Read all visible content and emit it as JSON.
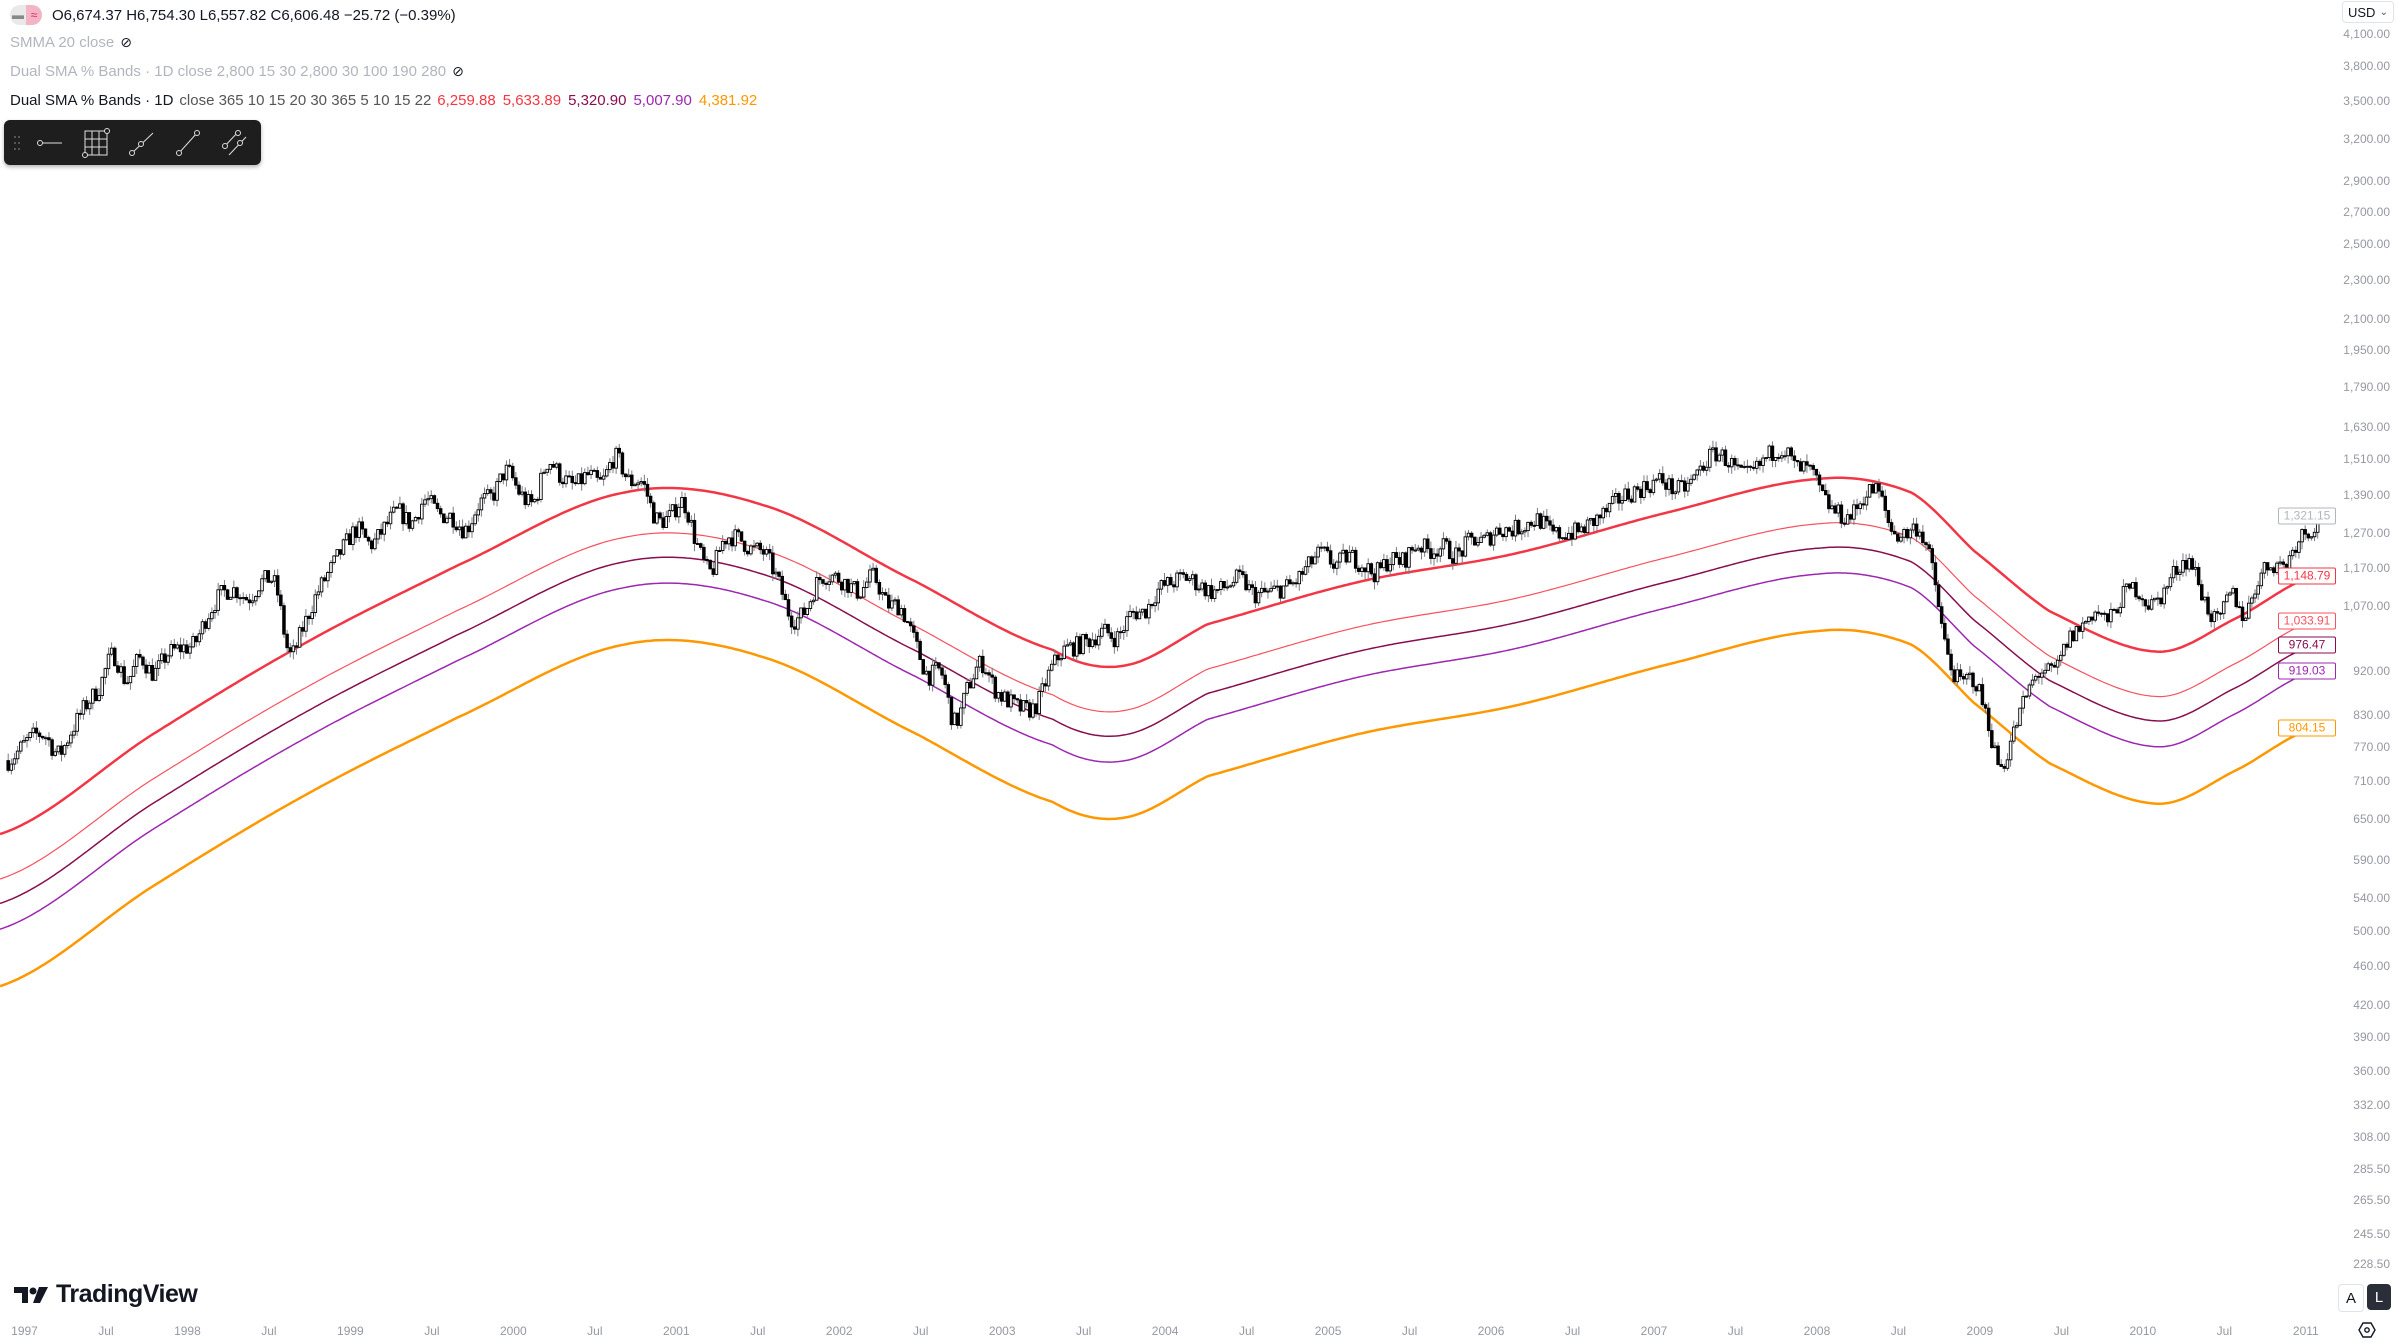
{
  "legend": {
    "ohlc": "O6,674.37 H6,754.30 L6,557.82 C6,606.48 −25.72 (−0.39%)",
    "smma": "SMMA 20 close",
    "hidden_bands": "Dual SMA % Bands · 1D close 2,800 15 30 2,800 30 100 190 280",
    "bands_title": "Dual SMA % Bands · 1D",
    "bands_params": "close 365 10 15 20 30 365 5 10 15 22",
    "band_values": [
      {
        "text": "6,259.88",
        "color": "#f23645"
      },
      {
        "text": "5,633.89",
        "color": "#f23645"
      },
      {
        "text": "5,320.90",
        "color": "#880e4f"
      },
      {
        "text": "5,007.90",
        "color": "#9c27b0"
      },
      {
        "text": "4,381.92",
        "color": "#ff9800"
      }
    ]
  },
  "toolbar": {
    "icons": [
      "drag-handle-icon",
      "horizontal-ray-icon",
      "fib-grid-icon",
      "trend-line-icon",
      "line-icon",
      "parallel-channel-icon"
    ]
  },
  "currency": "USD",
  "scale_buttons": {
    "auto": "A",
    "log": "L"
  },
  "logo": "TradingView",
  "price_axis": [
    "4,100.00",
    "3,800.00",
    "3,500.00",
    "3,200.00",
    "2,900.00",
    "2,700.00",
    "2,500.00",
    "2,300.00",
    "2,100.00",
    "1,950.00",
    "1,790.00",
    "1,630.00",
    "1,510.00",
    "1,390.00",
    "1,270.00",
    "1,170.00",
    "1,070.00",
    "920.00",
    "830.00",
    "770.00",
    "710.00",
    "650.00",
    "590.00",
    "540.00",
    "500.00",
    "460.00",
    "420.00",
    "390.00",
    "360.00",
    "332.00",
    "308.00",
    "285.50",
    "265.50",
    "245.50",
    "228.50"
  ],
  "time_axis": [
    "1997",
    "Jul",
    "1998",
    "Jul",
    "1999",
    "Jul",
    "2000",
    "Jul",
    "2001",
    "Jul",
    "2002",
    "Jul",
    "2003",
    "Jul",
    "2004",
    "Jul",
    "2005",
    "Jul",
    "2006",
    "Jul",
    "2007",
    "Jul",
    "2008",
    "Jul",
    "2009",
    "Jul",
    "2010",
    "Jul",
    "2011"
  ],
  "price_tags": [
    {
      "text": "1,321.15",
      "color": "#b2b5be",
      "value": 1321.15
    },
    {
      "text": "1,148.79",
      "color": "#f23645",
      "value": 1148.79
    },
    {
      "text": "1,033.91",
      "color": "#f7525f",
      "value": 1033.91
    },
    {
      "text": "976.47",
      "color": "#880e4f",
      "value": 976.47
    },
    {
      "text": "919.03",
      "color": "#9c27b0",
      "value": 919.03
    },
    {
      "text": "804.15",
      "color": "#ff9800",
      "value": 804.15
    }
  ],
  "chart_data": {
    "type": "candlestick",
    "scale": "log",
    "x_range": [
      "1997",
      "2011"
    ],
    "monthly_close_approx": {
      "1997": [
        786,
        790,
        757,
        801,
        848,
        885,
        954,
        899,
        947,
        915,
        955,
        970
      ],
      "1998": [
        980,
        1049,
        1101,
        1112,
        1091,
        1134,
        1121,
        957,
        1017,
        1099,
        1164,
        1229
      ],
      "1999": [
        1280,
        1238,
        1286,
        1335,
        1302,
        1373,
        1329,
        1320,
        1283,
        1362,
        1389,
        1469
      ],
      "2000": [
        1394,
        1366,
        1499,
        1452,
        1421,
        1455,
        1431,
        1518,
        1437,
        1429,
        1315,
        1320
      ],
      "2001": [
        1366,
        1240,
        1160,
        1249,
        1256,
        1224,
        1211,
        1134,
        1041,
        1060,
        1139,
        1148
      ],
      "2002": [
        1130,
        1107,
        1147,
        1077,
        1067,
        990,
        912,
        916,
        815,
        886,
        936,
        880
      ],
      "2003": [
        856,
        841,
        848,
        917,
        964,
        975,
        990,
        1008,
        996,
        1051,
        1058,
        1112
      ],
      "2004": [
        1131,
        1145,
        1126,
        1107,
        1121,
        1141,
        1102,
        1104,
        1115,
        1130,
        1174,
        1212
      ],
      "2005": [
        1181,
        1204,
        1181,
        1157,
        1192,
        1191,
        1234,
        1220,
        1229,
        1207,
        1249,
        1248
      ],
      "2006": [
        1280,
        1281,
        1295,
        1311,
        1270,
        1270,
        1277,
        1304,
        1336,
        1378,
        1401,
        1418
      ],
      "2007": [
        1438,
        1407,
        1421,
        1482,
        1531,
        1503,
        1455,
        1474,
        1527,
        1549,
        1481,
        1468
      ],
      "2008": [
        1378,
        1331,
        1323,
        1386,
        1400,
        1280,
        1267,
        1283,
        1166,
        969,
        896,
        903
      ],
      "2009": [
        826,
        735,
        798,
        873,
        919,
        919,
        987,
        1021,
        1057,
        1036,
        1096,
        1115
      ],
      "2010": [
        1074,
        1104,
        1169,
        1187,
        1089,
        1031,
        1102,
        1049,
        1141,
        1183,
        1181,
        1258
      ],
      "2011": [
        1286,
        1321.15
      ]
    },
    "sma_base": [
      [
        1996.85,
        627
      ],
      [
        1997.79,
        793
      ],
      [
        1998.73,
        983
      ],
      [
        1999.65,
        1176
      ],
      [
        2000.68,
        1397
      ],
      [
        2001.53,
        1357
      ],
      [
        2002.47,
        1134
      ],
      [
        2003.31,
        966
      ],
      [
        2003.75,
        931
      ],
      [
        2004.26,
        1026
      ],
      [
        2005.2,
        1134
      ],
      [
        2006.14,
        1210
      ],
      [
        2007.08,
        1333
      ],
      [
        2008.02,
        1443
      ],
      [
        2008.58,
        1397
      ],
      [
        2008.96,
        1220
      ],
      [
        2009.43,
        1057
      ],
      [
        2010.09,
        962
      ],
      [
        2010.56,
        1038
      ],
      [
        2011.05,
        1148.79
      ]
    ],
    "bands": [
      {
        "factor": 1.0,
        "color": "#f23645",
        "width": 2.5
      },
      {
        "factor": 0.9,
        "color": "#f7525f",
        "width": 1.2
      },
      {
        "factor": 0.85,
        "color": "#880e4f",
        "width": 1.5
      },
      {
        "factor": 0.8,
        "color": "#9c27b0",
        "width": 1.5
      },
      {
        "factor": 0.7,
        "color": "#ff9800",
        "width": 2.5
      }
    ],
    "candle_colors": {
      "up_fill": "#ffffff",
      "down_fill": "#000000",
      "border": "#000000",
      "wick": "#787b86"
    }
  }
}
